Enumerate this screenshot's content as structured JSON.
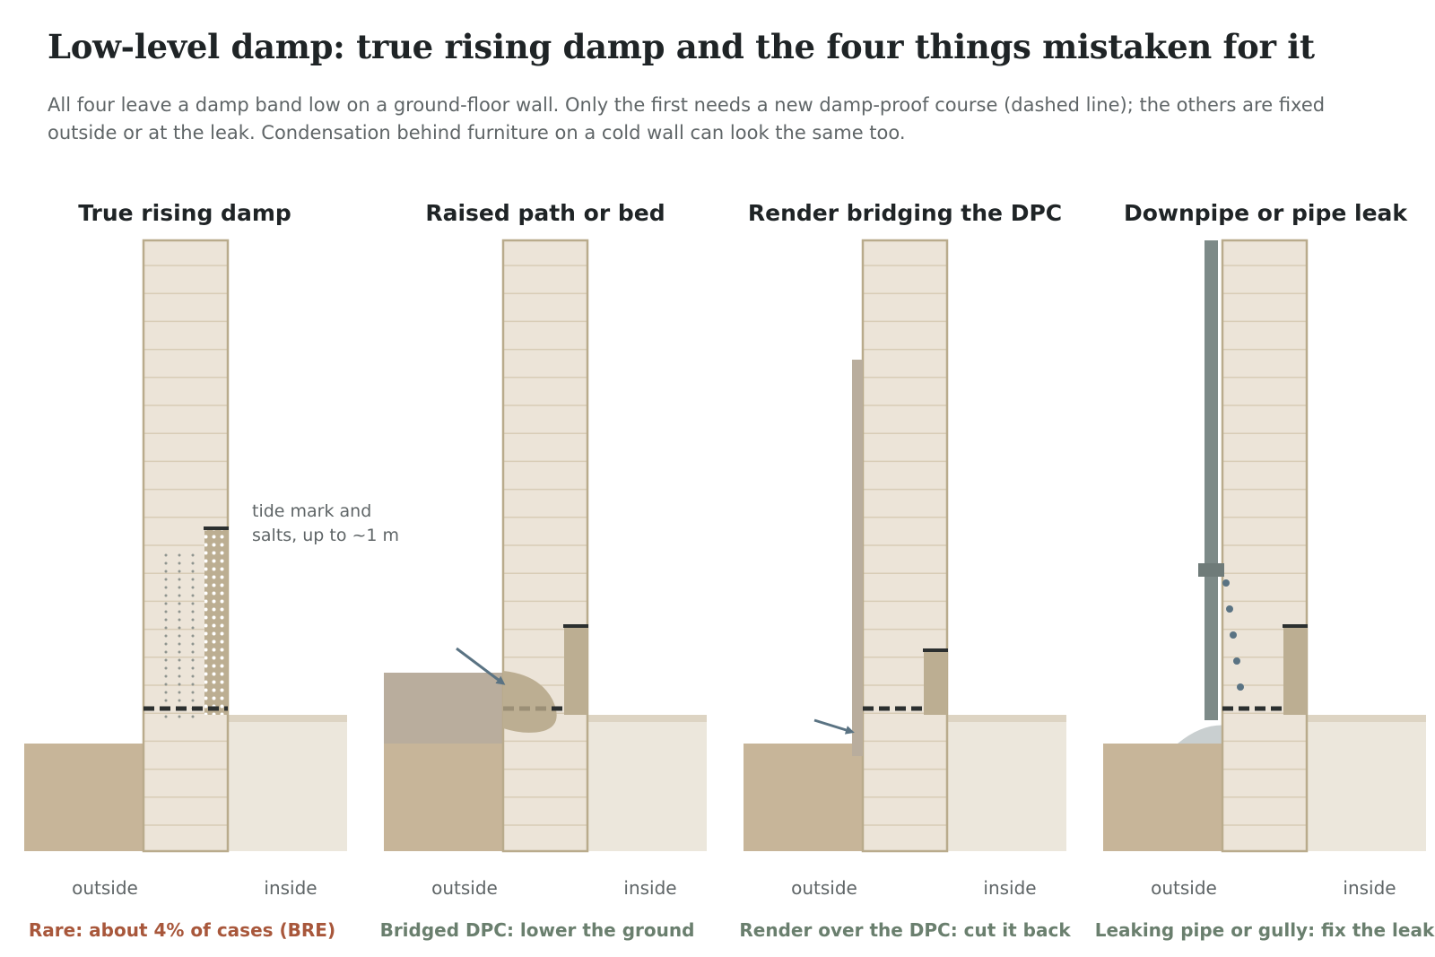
{
  "title": "Low-level damp: true rising damp and the four things mistaken for it",
  "subtitle": "All four leave a damp band low on a ground-floor wall. Only the first needs a new damp-proof course (dashed line); the others are fixed outside or at the leak. Condensation behind furniture on a cold wall can look the same too.",
  "labels": {
    "outside": "outside",
    "inside": "inside"
  },
  "colors": {
    "brick": "#ece4d8",
    "brick_edge": "#b9ab8c",
    "mortar": "#d8ccb6",
    "soil": "#c7b599",
    "floor": "#ece7dc",
    "floor_top": "#ddd4c3",
    "damp_band": "#bcae92",
    "render": "#b9ad9d",
    "pipe": "#7d8a88",
    "arrow": "#5a7383",
    "dpc": "#2b2f2f",
    "verdict_red": "#a8573b",
    "verdict_green": "#6a7f6e"
  },
  "panels": [
    {
      "id": "true-rising-damp",
      "title": "True rising damp",
      "annotation_lines": [
        "tide mark and",
        "salts, up to ~1 m"
      ],
      "verdict": "Rare: about 4% of cases (BRE)",
      "verdict_color": "#a8573b"
    },
    {
      "id": "raised-path",
      "title": "Raised path or bed",
      "verdict": "Bridged DPC: lower the ground",
      "verdict_color": "#6a7f6e"
    },
    {
      "id": "render-bridging",
      "title": "Render bridging the DPC",
      "verdict": "Render over the DPC: cut it back",
      "verdict_color": "#6a7f6e"
    },
    {
      "id": "downpipe-leak",
      "title": "Downpipe or pipe leak",
      "verdict": "Leaking pipe or gully: fix the leak",
      "verdict_color": "#6a7f6e"
    }
  ]
}
